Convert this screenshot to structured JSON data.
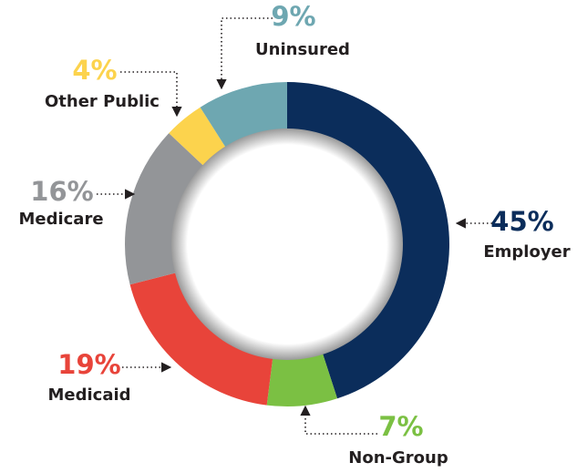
{
  "chart_data": {
    "type": "donut",
    "categories": [
      "Employer",
      "Non-Group",
      "Medicaid",
      "Medicare",
      "Other Public",
      "Uninsured"
    ],
    "values": [
      45,
      7,
      19,
      16,
      4,
      9
    ],
    "value_labels": [
      "45%",
      "7%",
      "19%",
      "16%",
      "4%",
      "9%"
    ],
    "colors": [
      "#0b2d5b",
      "#7bc043",
      "#e8443a",
      "#939598",
      "#fcd34d",
      "#6ea7b1"
    ]
  }
}
